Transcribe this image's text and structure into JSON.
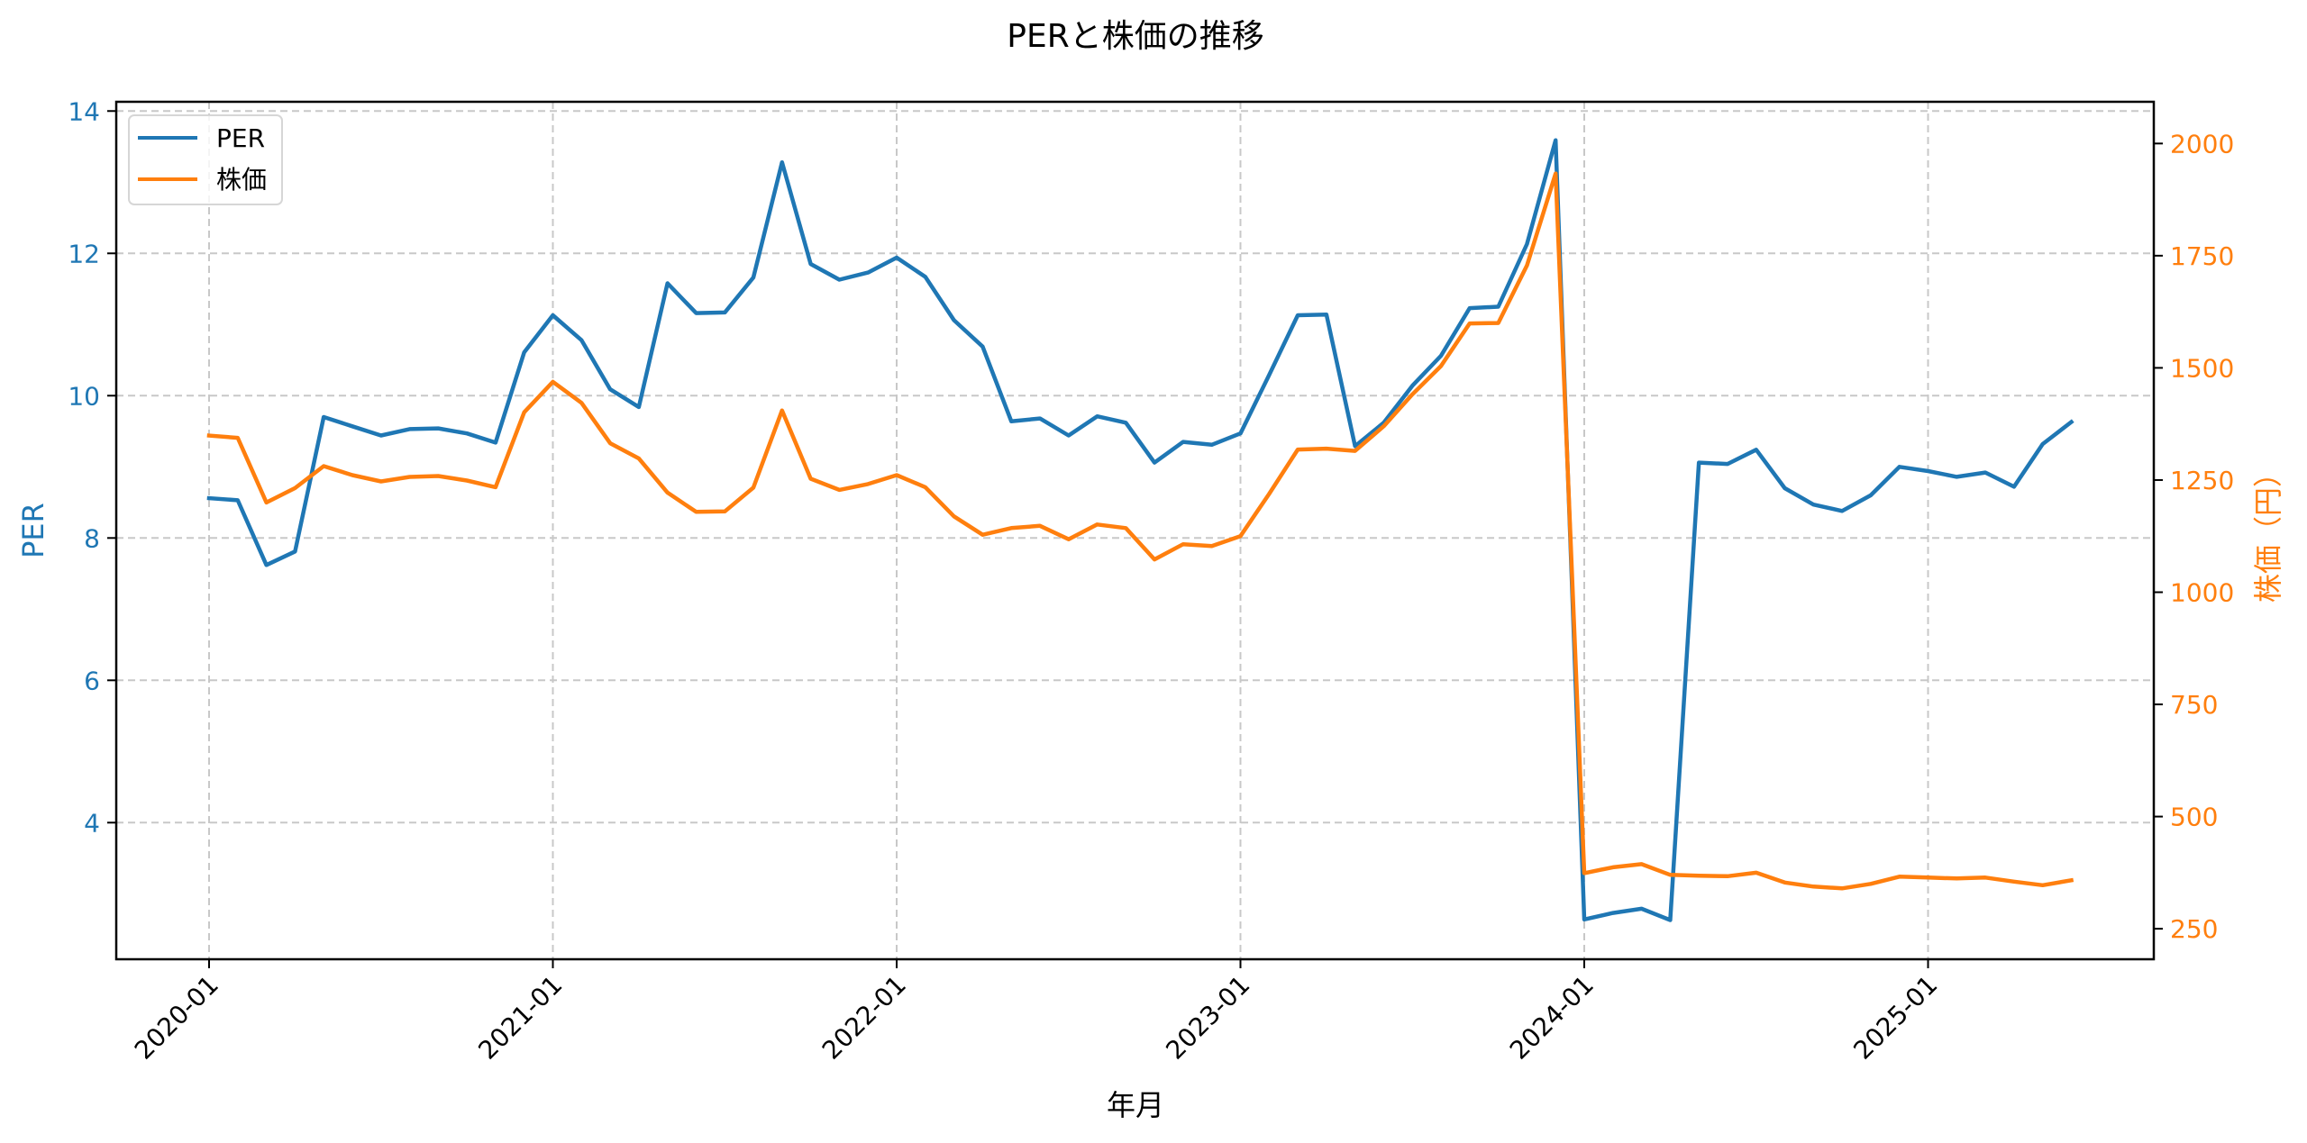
{
  "chart_data": {
    "type": "line",
    "title": "PERと株価の推移",
    "xlabel": "年月",
    "ylabel": "PER",
    "ylabel_right": "株価（円）",
    "legend": [
      "PER",
      "株価"
    ],
    "legend_position": "upper left",
    "grid": true,
    "x_tick_labels": [
      "2020-01",
      "2021-01",
      "2022-01",
      "2023-01",
      "2024-01",
      "2025-01"
    ],
    "y_ticks_left": [
      4,
      6,
      8,
      10,
      12,
      14
    ],
    "y_ticks_right": [
      250,
      500,
      750,
      1000,
      1250,
      1500,
      1750,
      2000
    ],
    "ylim_left": [
      2.08,
      14.13
    ],
    "ylim_right": [
      182,
      2093
    ],
    "x": [
      "2020-01",
      "2020-02",
      "2020-03",
      "2020-04",
      "2020-05",
      "2020-06",
      "2020-07",
      "2020-08",
      "2020-09",
      "2020-10",
      "2020-11",
      "2020-12",
      "2021-01",
      "2021-02",
      "2021-03",
      "2021-04",
      "2021-05",
      "2021-06",
      "2021-07",
      "2021-08",
      "2021-09",
      "2021-10",
      "2021-11",
      "2021-12",
      "2022-01",
      "2022-02",
      "2022-03",
      "2022-04",
      "2022-05",
      "2022-06",
      "2022-07",
      "2022-08",
      "2022-09",
      "2022-10",
      "2022-11",
      "2022-12",
      "2023-01",
      "2023-02",
      "2023-03",
      "2023-04",
      "2023-05",
      "2023-06",
      "2023-07",
      "2023-08",
      "2023-09",
      "2023-10",
      "2023-11",
      "2023-12",
      "2024-01",
      "2024-02",
      "2024-03",
      "2024-04",
      "2024-05",
      "2024-06",
      "2024-07",
      "2024-08",
      "2024-09",
      "2024-10",
      "2024-11",
      "2024-12",
      "2025-01",
      "2025-02",
      "2025-03",
      "2025-04",
      "2025-05",
      "2025-06"
    ],
    "series": [
      {
        "name": "PER",
        "axis": "left",
        "color": "#1f77b4",
        "values": [
          8.56,
          8.53,
          7.62,
          7.81,
          9.7,
          9.57,
          9.44,
          9.53,
          9.54,
          9.47,
          9.34,
          10.61,
          11.13,
          10.78,
          10.09,
          9.84,
          11.58,
          11.16,
          11.17,
          11.66,
          13.28,
          11.85,
          11.63,
          11.73,
          11.94,
          11.67,
          11.06,
          10.69,
          9.64,
          9.68,
          9.44,
          9.71,
          9.62,
          9.06,
          9.35,
          9.31,
          9.47,
          10.29,
          11.13,
          11.14,
          9.29,
          9.62,
          10.14,
          10.56,
          11.23,
          11.25,
          12.13,
          13.59,
          2.64,
          2.73,
          2.79,
          2.63,
          9.06,
          9.04,
          9.24,
          8.7,
          8.47,
          8.38,
          8.6,
          9.0,
          8.94,
          8.86,
          8.92,
          8.72,
          9.32,
          9.63
        ]
      },
      {
        "name": "株価",
        "axis": "right",
        "color": "#ff7f0e",
        "values": [
          1349,
          1344,
          1200,
          1232,
          1281,
          1261,
          1247,
          1257,
          1259,
          1249,
          1234,
          1401,
          1469,
          1422,
          1332,
          1298,
          1222,
          1179,
          1180,
          1233,
          1405,
          1253,
          1228,
          1241,
          1261,
          1234,
          1169,
          1128,
          1143,
          1148,
          1118,
          1151,
          1143,
          1073,
          1107,
          1103,
          1125,
          1219,
          1318,
          1320,
          1315,
          1370,
          1441,
          1504,
          1599,
          1600,
          1728,
          1933,
          374,
          387,
          394,
          370,
          368,
          367,
          375,
          353,
          344,
          340,
          350,
          366,
          364,
          362,
          364,
          355,
          347,
          358
        ]
      }
    ]
  },
  "colors": {
    "per": "#1f77b4",
    "price": "#ff7f0e",
    "grid": "#c8c8c8",
    "text": "#000000"
  }
}
